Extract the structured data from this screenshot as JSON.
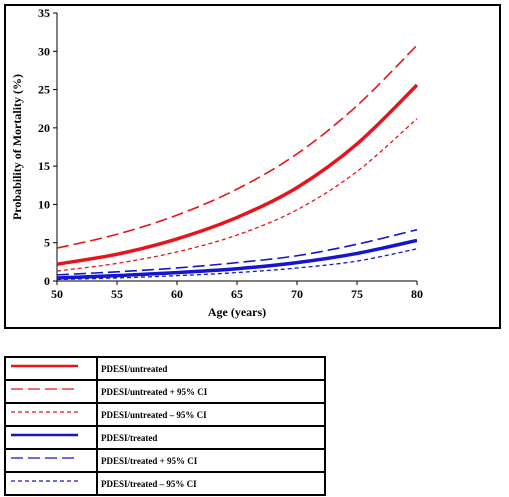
{
  "chart_data": {
    "type": "line",
    "title": "",
    "xlabel": "Age (years)",
    "ylabel": "Probability of Mortality (%)",
    "xlim": [
      50,
      80
    ],
    "ylim": [
      0,
      35
    ],
    "x_ticks": [
      50,
      55,
      60,
      65,
      70,
      75,
      80
    ],
    "y_ticks": [
      0,
      5,
      10,
      15,
      20,
      25,
      30,
      35
    ],
    "x": [
      50,
      55,
      60,
      65,
      70,
      75,
      80
    ],
    "grid": false,
    "legend_position": "bottom-left (table)",
    "series": [
      {
        "name": "PDESI/untreated",
        "color": "#e8141c",
        "style": "solid",
        "width": 3.5,
        "values": [
          2.2,
          3.5,
          5.5,
          8.3,
          12.2,
          17.9,
          25.6
        ]
      },
      {
        "name": "PDESI/untreated + 95% CI",
        "color": "#e8141c",
        "style": "dashed",
        "width": 1.6,
        "values": [
          4.3,
          6.1,
          8.6,
          12.0,
          16.6,
          22.9,
          30.8
        ]
      },
      {
        "name": "PDESI/untreated – 95% CI",
        "color": "#e8141c",
        "style": "dotted",
        "width": 1.3,
        "values": [
          1.3,
          2.3,
          3.8,
          6.0,
          9.3,
          14.3,
          21.2
        ]
      },
      {
        "name": "PDESI/treated",
        "color": "#1515d0",
        "style": "solid",
        "width": 3.5,
        "values": [
          0.4,
          0.7,
          1.1,
          1.6,
          2.4,
          3.6,
          5.3
        ]
      },
      {
        "name": "PDESI/treated + 95% CI",
        "color": "#1515d0",
        "style": "dashed",
        "width": 1.6,
        "values": [
          0.8,
          1.2,
          1.7,
          2.4,
          3.3,
          4.8,
          6.7
        ]
      },
      {
        "name": "PDESI/treated – 95% CI",
        "color": "#1515d0",
        "style": "dotted",
        "width": 1.3,
        "values": [
          0.2,
          0.4,
          0.7,
          1.1,
          1.7,
          2.6,
          4.2
        ]
      }
    ]
  }
}
